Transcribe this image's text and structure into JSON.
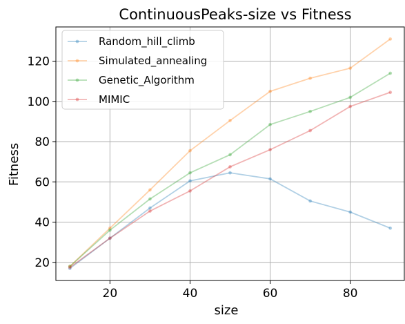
{
  "chart_data": {
    "type": "line",
    "title": "ContinuousPeaks-size vs Fitness",
    "xlabel": "size",
    "ylabel": "Fitness",
    "x": [
      10,
      20,
      30,
      40,
      50,
      60,
      70,
      80,
      90
    ],
    "xlim": [
      6.5,
      93.5
    ],
    "ylim": [
      11,
      137
    ],
    "xticks": [
      20,
      40,
      60,
      80
    ],
    "yticks": [
      20,
      40,
      60,
      80,
      100,
      120
    ],
    "grid": true,
    "legend_position": "top-left",
    "series": [
      {
        "name": "Random_hill_climb",
        "color": "#1f77b4",
        "values": [
          17,
          32,
          47,
          60.5,
          64.5,
          61.5,
          50.5,
          45,
          37
        ]
      },
      {
        "name": "Simulated_annealing",
        "color": "#ff7f0e",
        "values": [
          18,
          37,
          56,
          75.5,
          90.5,
          105,
          111.5,
          116.5,
          131
        ]
      },
      {
        "name": "Genetic_Algorithm",
        "color": "#2ca02c",
        "values": [
          18,
          36,
          51.5,
          64.5,
          73.5,
          88.5,
          95,
          102,
          114
        ]
      },
      {
        "name": "MIMIC",
        "color": "#d62728",
        "values": [
          17.5,
          32,
          45.5,
          55.5,
          67.5,
          76,
          85.5,
          97.5,
          104.5
        ]
      }
    ]
  }
}
